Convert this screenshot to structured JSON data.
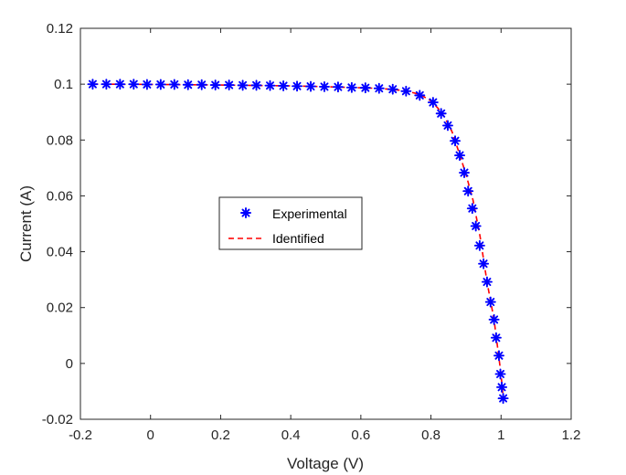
{
  "chart_data": {
    "type": "scatter",
    "title": "",
    "xlabel": "Voltage (V)",
    "ylabel": "Current (A)",
    "xlim": [
      -0.2,
      1.2
    ],
    "ylim": [
      -0.02,
      0.12
    ],
    "xticks": [
      -0.2,
      0,
      0.2,
      0.4,
      0.6,
      0.8,
      1,
      1.2
    ],
    "xtick_labels": [
      "-0.2",
      "0",
      "0.2",
      "0.4",
      "0.6",
      "0.8",
      "1",
      "1.2"
    ],
    "yticks": [
      -0.02,
      0,
      0.02,
      0.04,
      0.06,
      0.08,
      0.1,
      0.12
    ],
    "ytick_labels": [
      "-0.02",
      "0",
      "0.02",
      "0.04",
      "0.06",
      "0.08",
      "0.1",
      "0.12"
    ],
    "grid": false,
    "legend_position": "center-left",
    "series": [
      {
        "name": "Experimental",
        "style": "markers",
        "marker": "asterisk",
        "color": "#0000ff",
        "x": [
          -0.165,
          -0.126,
          -0.087,
          -0.048,
          -0.01,
          0.029,
          0.068,
          0.107,
          0.146,
          0.185,
          0.224,
          0.263,
          0.302,
          0.341,
          0.379,
          0.418,
          0.457,
          0.496,
          0.535,
          0.574,
          0.613,
          0.652,
          0.691,
          0.729,
          0.768,
          0.806,
          0.829,
          0.848,
          0.869,
          0.882,
          0.895,
          0.906,
          0.918,
          0.928,
          0.939,
          0.95,
          0.96,
          0.97,
          0.98,
          0.986,
          0.994,
          0.998,
          1.002,
          1.006
        ],
        "y": [
          0.1,
          0.1,
          0.1,
          0.1,
          0.0999,
          0.0999,
          0.0999,
          0.0998,
          0.0998,
          0.0997,
          0.0997,
          0.0996,
          0.0996,
          0.0995,
          0.0994,
          0.0993,
          0.0992,
          0.0991,
          0.099,
          0.0988,
          0.0987,
          0.0985,
          0.0982,
          0.0975,
          0.096,
          0.0935,
          0.0895,
          0.0852,
          0.0797,
          0.0745,
          0.0683,
          0.0617,
          0.0555,
          0.0492,
          0.0422,
          0.0357,
          0.0292,
          0.022,
          0.0157,
          0.0092,
          0.0028,
          -0.0038,
          -0.0085,
          -0.0125
        ]
      },
      {
        "name": "Identified",
        "style": "dashed-line",
        "color": "#ff0000",
        "x": [
          -0.165,
          0.0,
          0.2,
          0.4,
          0.5,
          0.6,
          0.65,
          0.7,
          0.73,
          0.76,
          0.78,
          0.8,
          0.82,
          0.84,
          0.86,
          0.88,
          0.9,
          0.92,
          0.94,
          0.96,
          0.98,
          1.0,
          1.006
        ],
        "y": [
          0.1,
          0.0999,
          0.0997,
          0.0994,
          0.0991,
          0.0987,
          0.0985,
          0.098,
          0.0975,
          0.0966,
          0.0955,
          0.094,
          0.0914,
          0.088,
          0.083,
          0.0755,
          0.0677,
          0.0585,
          0.0455,
          0.0292,
          0.0157,
          -0.004,
          -0.0125
        ]
      }
    ]
  }
}
